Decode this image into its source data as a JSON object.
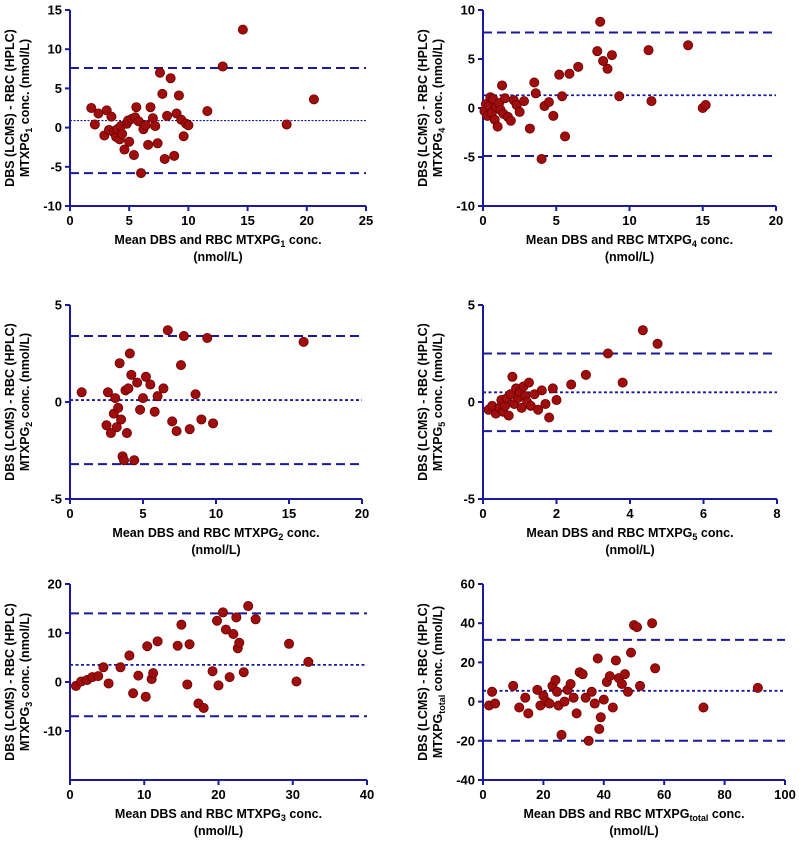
{
  "colors": {
    "axis": "#1a1a9a",
    "line": "#1a1a9a",
    "point": "#a00d0d",
    "point_stroke": "#6a0000"
  },
  "chart_data": [
    {
      "id": "mtxpg1",
      "type": "scatter",
      "xlabel": {
        "main": "Mean DBS and RBC MTXPG",
        "sub": "1",
        "tail": " conc.",
        "line2": "(nmol/L)"
      },
      "ylabel": {
        "line1": "DBS (LCMS) - RBC (HPLC)",
        "main": "MTXPG",
        "sub": "1",
        "tail": " conc. (nmol/L)"
      },
      "xlim": [
        0,
        25
      ],
      "xticks": [
        0,
        5,
        10,
        15,
        20,
        25
      ],
      "ylim": [
        -10,
        15
      ],
      "yticks": [
        -10,
        -5,
        0,
        5,
        10,
        15
      ],
      "mean": 0.9,
      "upper_loa": 7.6,
      "lower_loa": -5.8,
      "x": [
        1.8,
        2.1,
        2.4,
        2.9,
        3.1,
        3.3,
        3.5,
        3.7,
        3.9,
        4.0,
        4.2,
        4.3,
        4.4,
        4.6,
        4.8,
        4.9,
        5.0,
        5.2,
        5.4,
        5.5,
        5.6,
        5.8,
        6.0,
        6.2,
        6.4,
        6.6,
        6.8,
        7.0,
        7.2,
        7.4,
        7.6,
        7.8,
        8.0,
        8.2,
        8.5,
        8.8,
        9.0,
        9.2,
        9.4,
        9.6,
        9.8,
        10.0,
        11.6,
        12.9,
        14.6,
        18.3,
        20.6
      ],
      "y": [
        2.5,
        0.4,
        1.8,
        -1.0,
        2.2,
        -0.3,
        1.4,
        -0.6,
        -1.2,
        -0.2,
        -1.5,
        0.2,
        -0.8,
        -2.8,
        0.5,
        0.9,
        -1.8,
        1.1,
        -3.5,
        1.3,
        2.6,
        0.8,
        -5.8,
        -0.2,
        0.3,
        -2.2,
        2.6,
        1.2,
        0.2,
        -2.0,
        7.0,
        4.3,
        -4.0,
        1.5,
        6.3,
        -3.6,
        1.8,
        4.1,
        1.0,
        -1.1,
        0.5,
        0.3,
        2.1,
        7.8,
        12.5,
        0.4,
        3.6
      ]
    },
    {
      "id": "mtxpg4",
      "type": "scatter",
      "xlabel": {
        "main": "Mean DBS and RBC MTXPG",
        "sub": "4",
        "tail": " conc.",
        "line2": "(nmol/L)"
      },
      "ylabel": {
        "line1": "DBS (LCMS) - RBC (HPLC)",
        "main": "MTXPG",
        "sub": "4",
        "tail": " conc. (nmol/L)"
      },
      "xlim": [
        0,
        20
      ],
      "xticks": [
        0,
        5,
        10,
        15,
        20
      ],
      "ylim": [
        -10,
        10
      ],
      "yticks": [
        -10,
        -5,
        0,
        5,
        10
      ],
      "mean": 1.3,
      "upper_loa": 7.7,
      "lower_loa": -4.9,
      "x": [
        0.1,
        0.2,
        0.3,
        0.4,
        0.5,
        0.6,
        0.7,
        0.8,
        0.9,
        1.0,
        1.1,
        1.2,
        1.3,
        1.4,
        1.5,
        1.7,
        1.9,
        2.1,
        2.3,
        2.5,
        2.8,
        3.2,
        3.5,
        3.6,
        4.0,
        4.2,
        4.5,
        4.8,
        5.2,
        5.4,
        5.6,
        5.9,
        6.5,
        7.8,
        8.0,
        8.2,
        8.5,
        8.8,
        9.3,
        11.3,
        11.5,
        14.0,
        15.0,
        15.2
      ],
      "y": [
        -0.3,
        0.4,
        -0.8,
        0.2,
        1.1,
        -0.5,
        0.9,
        -1.2,
        0.1,
        -1.9,
        0.5,
        -0.2,
        2.3,
        -0.6,
        1.0,
        -0.9,
        -1.3,
        0.8,
        0.3,
        -0.4,
        0.7,
        -2.1,
        2.6,
        1.5,
        -5.2,
        0.2,
        0.6,
        -0.8,
        3.4,
        1.2,
        -2.9,
        3.5,
        4.2,
        5.8,
        8.8,
        4.8,
        4.0,
        5.4,
        1.2,
        5.9,
        0.7,
        6.4,
        0.0,
        0.3
      ]
    },
    {
      "id": "mtxpg2",
      "type": "scatter",
      "xlabel": {
        "main": "Mean DBS and RBC MTXPG",
        "sub": "2",
        "tail": " conc.",
        "line2": "(nmol/L)"
      },
      "ylabel": {
        "line1": "DBS (LCMS) - RBC (HPLC)",
        "main": "MTXPG",
        "sub": "2",
        "tail": " conc. (nmol/L)"
      },
      "xlim": [
        0,
        20
      ],
      "xticks": [
        0,
        5,
        10,
        15,
        20
      ],
      "ylim": [
        -5,
        5
      ],
      "yticks": [
        -5,
        0,
        5
      ],
      "mean": 0.1,
      "upper_loa": 3.4,
      "lower_loa": -3.2,
      "x": [
        0.8,
        2.5,
        2.6,
        2.8,
        3.0,
        3.1,
        3.2,
        3.3,
        3.4,
        3.5,
        3.6,
        3.7,
        3.8,
        3.9,
        4.0,
        4.1,
        4.2,
        4.4,
        4.6,
        4.8,
        5.0,
        5.2,
        5.5,
        5.8,
        6.0,
        6.4,
        6.7,
        7.0,
        7.3,
        7.6,
        7.8,
        8.2,
        8.6,
        9.0,
        9.4,
        9.8,
        16.0
      ],
      "y": [
        0.5,
        -1.2,
        0.5,
        -1.6,
        -0.6,
        0.2,
        -1.3,
        -0.3,
        2.0,
        -0.9,
        -2.8,
        -3.0,
        0.6,
        -1.6,
        0.7,
        2.5,
        1.4,
        -3.0,
        1.0,
        -0.4,
        0.2,
        1.3,
        0.9,
        -0.5,
        0.3,
        0.7,
        3.7,
        -1.0,
        -1.5,
        1.9,
        3.4,
        -1.4,
        0.4,
        -0.9,
        3.3,
        -1.1,
        3.1
      ]
    },
    {
      "id": "mtxpg5",
      "type": "scatter",
      "xlabel": {
        "main": "Mean DBS and RBC MTXPG",
        "sub": "5",
        "tail": " conc.",
        "line2": "(nmol/L)"
      },
      "ylabel": {
        "line1": "DBS (LCMS) - RBC (HPLC)",
        "main": "MTXPG",
        "sub": "5",
        "tail": " conc. (nmol/L)"
      },
      "xlim": [
        0,
        8
      ],
      "xticks": [
        0,
        2,
        4,
        6,
        8
      ],
      "ylim": [
        -5,
        5
      ],
      "yticks": [
        -5,
        0,
        5
      ],
      "mean": 0.5,
      "upper_loa": 2.5,
      "lower_loa": -1.5,
      "x": [
        0.15,
        0.25,
        0.35,
        0.45,
        0.5,
        0.55,
        0.6,
        0.65,
        0.7,
        0.75,
        0.8,
        0.85,
        0.9,
        0.95,
        1.0,
        1.05,
        1.1,
        1.15,
        1.2,
        1.25,
        1.3,
        1.4,
        1.5,
        1.6,
        1.7,
        1.8,
        1.9,
        2.0,
        2.4,
        2.8,
        3.4,
        3.8,
        4.35,
        4.75
      ],
      "y": [
        -0.4,
        -0.2,
        -0.6,
        -0.3,
        0.1,
        -0.5,
        -0.2,
        0.2,
        -0.7,
        0.4,
        1.3,
        -0.1,
        0.7,
        0.2,
        0.5,
        -0.3,
        0.8,
        0.3,
        0.0,
        1.0,
        -0.2,
        0.4,
        -0.4,
        0.6,
        -0.1,
        -0.8,
        0.7,
        0.1,
        0.9,
        1.4,
        2.5,
        1.0,
        3.7,
        3.0
      ]
    },
    {
      "id": "mtxpg3",
      "type": "scatter",
      "xlabel": {
        "main": "Mean DBS and RBC MTXPG",
        "sub": "3",
        "tail": " conc.",
        "line2": "(nmol/L)"
      },
      "ylabel": {
        "line1": "DBS (LCMS) - RBC (HPLC)",
        "main": "MTXPG",
        "sub": "3",
        "tail": " conc. (nmol/L)"
      },
      "xlim": [
        0,
        40
      ],
      "xticks": [
        0,
        10,
        20,
        30,
        40
      ],
      "ylim": [
        -20,
        20
      ],
      "yticks": [
        -10,
        0,
        10,
        20
      ],
      "mean": 3.5,
      "upper_loa": 14.0,
      "lower_loa": -7.0,
      "x": [
        0.8,
        1.5,
        2.3,
        3.0,
        3.8,
        4.5,
        5.2,
        6.8,
        8.0,
        8.5,
        9.2,
        10.2,
        10.4,
        11.0,
        11.2,
        11.8,
        14.5,
        15.0,
        15.8,
        16.1,
        17.3,
        18.0,
        19.2,
        19.8,
        20.0,
        20.6,
        21.0,
        21.5,
        22.0,
        22.4,
        22.6,
        22.8,
        23.4,
        24.0,
        25.0,
        29.5,
        30.5,
        32.1
      ],
      "y": [
        -0.8,
        0.1,
        0.4,
        1.0,
        1.2,
        3.0,
        -0.3,
        3.0,
        5.4,
        -2.3,
        1.3,
        -3.0,
        7.3,
        0.6,
        1.8,
        8.3,
        7.4,
        11.7,
        -0.5,
        7.7,
        -4.4,
        -5.3,
        2.2,
        12.5,
        -0.7,
        14.2,
        10.7,
        1.0,
        9.8,
        13.2,
        6.9,
        8.0,
        2.0,
        15.5,
        12.8,
        7.8,
        0.1,
        4.1
      ]
    },
    {
      "id": "mtxpg_total",
      "type": "scatter",
      "xlabel": {
        "main": "Mean DBS and RBC MTXPG",
        "sub": "total",
        "tail": " conc.",
        "line2": "(nmol/L)"
      },
      "ylabel": {
        "line1": "DBS (LCMS) - RBC (HPLC)",
        "main": "MTXPG",
        "sub": "total",
        "tail": " conc. (nmol/L)"
      },
      "xlim": [
        0,
        100
      ],
      "xticks": [
        0,
        20,
        40,
        60,
        80,
        100
      ],
      "ylim": [
        -40,
        60
      ],
      "yticks": [
        -40,
        -20,
        0,
        20,
        40,
        60
      ],
      "mean": 5.5,
      "upper_loa": 31.5,
      "lower_loa": -20.0,
      "x": [
        2.0,
        3.0,
        4.0,
        10.0,
        12.0,
        14.0,
        15.0,
        18.0,
        19.0,
        20.0,
        21.0,
        22.0,
        23.0,
        24.0,
        24.5,
        25.0,
        26.0,
        27.0,
        28.0,
        29.0,
        30.0,
        31.0,
        32.0,
        33.0,
        34.0,
        35.0,
        36.0,
        37.0,
        38.0,
        38.5,
        39.0,
        40.0,
        41.0,
        42.0,
        43.0,
        44.0,
        45.0,
        46.0,
        47.0,
        48.0,
        49.0,
        50.0,
        51.0,
        52.0,
        56.0,
        57.0,
        73.0,
        91.0
      ],
      "y": [
        -2.0,
        5.0,
        -1.0,
        8.0,
        -3.0,
        2.0,
        -6.0,
        6.0,
        -2.0,
        3.0,
        0.0,
        -1.0,
        8.0,
        11.0,
        5.0,
        -2.0,
        -17.0,
        0.0,
        6.0,
        9.0,
        2.0,
        -6.0,
        15.0,
        14.0,
        2.0,
        -20.0,
        5.0,
        -1.0,
        22.0,
        -14.0,
        -8.0,
        1.0,
        10.0,
        13.0,
        -3.0,
        21.0,
        12.0,
        9.0,
        14.0,
        5.0,
        25.0,
        39.0,
        38.0,
        8.0,
        40.0,
        17.0,
        -3.0,
        7.0
      ]
    }
  ]
}
